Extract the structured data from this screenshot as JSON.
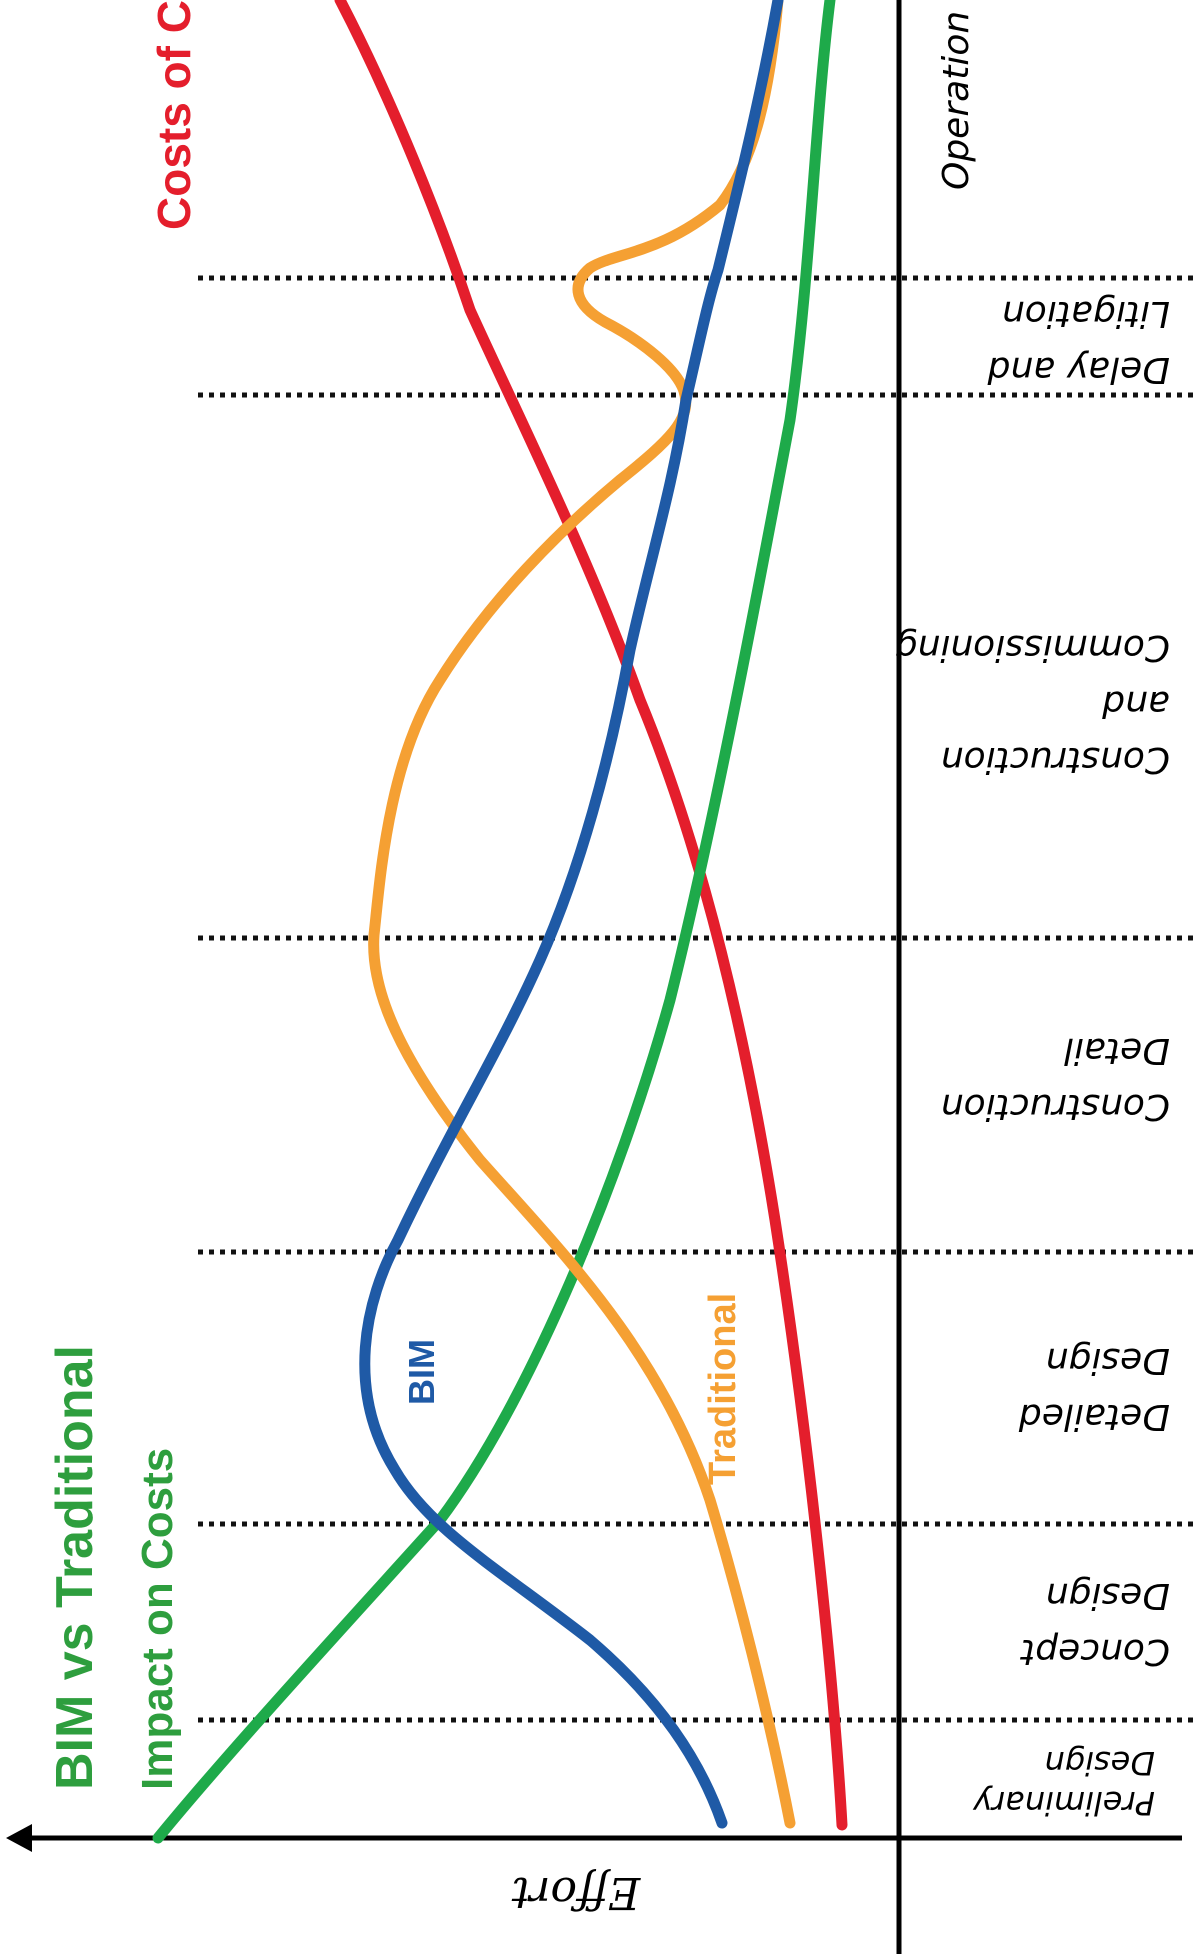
{
  "title": {
    "main": "BIM vs Traditional",
    "subtitle": "Impact on Costs",
    "costs_of_change": "Costs of Ch"
  },
  "axis": {
    "y_label": "Effort"
  },
  "phases": [
    {
      "id": "preliminary",
      "lines": [
        "Preliminary",
        "Design"
      ]
    },
    {
      "id": "concept",
      "lines": [
        "Concept",
        "Design"
      ]
    },
    {
      "id": "detailed",
      "lines": [
        "Detailed",
        "Design"
      ]
    },
    {
      "id": "construction-detail",
      "lines": [
        "Construction",
        "Detail"
      ]
    },
    {
      "id": "construction-commissioning",
      "lines": [
        "Construction",
        "and",
        "Commissioning"
      ]
    },
    {
      "id": "delay-litigation",
      "lines": [
        "Delay and",
        "Litigation"
      ]
    },
    {
      "id": "operation",
      "lines": [
        "Operation"
      ]
    }
  ],
  "series_labels": {
    "bim": "BIM",
    "traditional": "Traditional"
  },
  "colors": {
    "bim": "#1f5aa6",
    "traditional": "#f5a033",
    "impact": "#1eaa4a",
    "costs": "#e41e2c",
    "title_green": "#2e9e3e",
    "axis": "#000000"
  }
}
